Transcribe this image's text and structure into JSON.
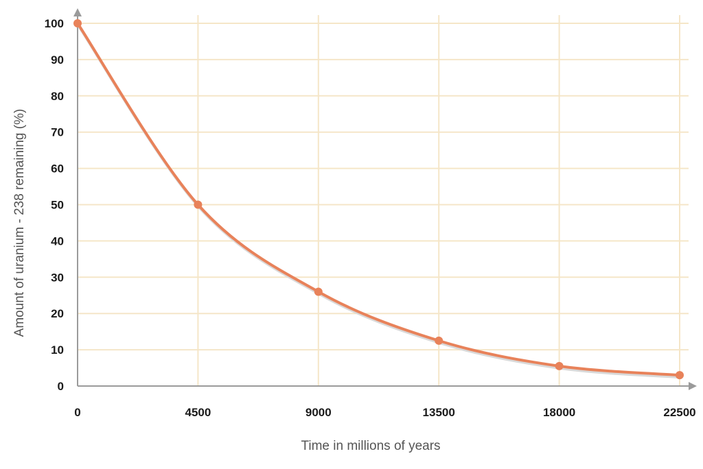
{
  "chart_data": {
    "type": "line",
    "xlabel": "Time in millions of years",
    "ylabel": "Amount of uranium - 238 remaining   (%)",
    "x_ticks": [
      "0",
      "4500",
      "9000",
      "13500",
      "18000",
      "22500"
    ],
    "y_ticks": [
      "0",
      "10",
      "20",
      "30",
      "40",
      "50",
      "60",
      "70",
      "80",
      "90",
      "100"
    ],
    "xlim": [
      0,
      22500
    ],
    "ylim": [
      0,
      100
    ],
    "grid": true,
    "series": [
      {
        "x": [
          0,
          4500,
          9000,
          13500,
          18000,
          22500
        ],
        "y": [
          100,
          50,
          26,
          12.5,
          5.5,
          3
        ]
      }
    ],
    "colors": {
      "line": "#e8825a",
      "grid": "#f5e6c8",
      "axis": "#9a9a9a"
    }
  }
}
